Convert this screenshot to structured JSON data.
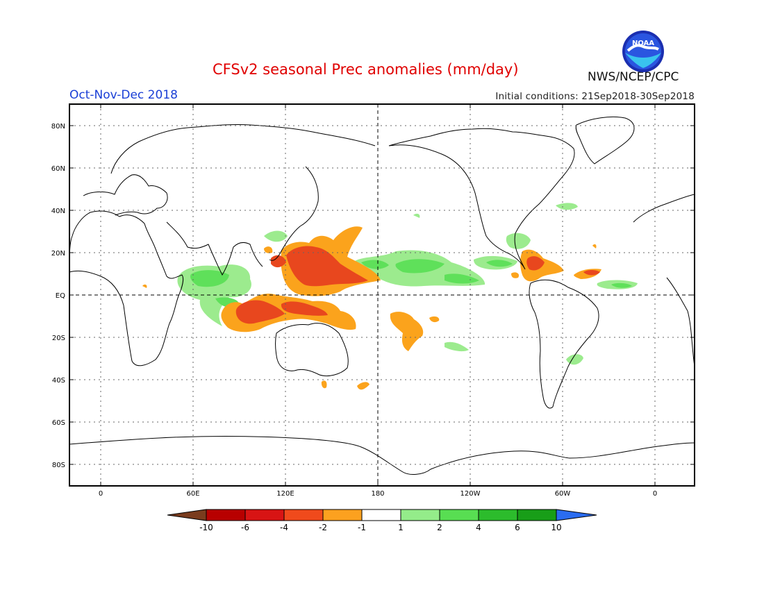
{
  "header": {
    "title": "CFSv2 seasonal Prec anomalies (mm/day)",
    "season": "Oct-Nov-Dec 2018",
    "initial_conditions": "Initial conditions: 21Sep2018-30Sep2018",
    "agency": "NWS/NCEP/CPC",
    "logo_text": "NOAA"
  },
  "map": {
    "lat_labels": [
      "80N",
      "60N",
      "40N",
      "20N",
      "EQ",
      "20S",
      "40S",
      "60S",
      "80S"
    ],
    "lon_labels": [
      "0",
      "60E",
      "120E",
      "180",
      "120W",
      "60W",
      "0"
    ]
  },
  "legend": {
    "tick_labels": [
      "-10",
      "-6",
      "-4",
      "-2",
      "-1",
      "1",
      "2",
      "4",
      "6",
      "10"
    ],
    "colors": [
      "#7a3c1e",
      "#b80000",
      "#d81414",
      "#f04a1c",
      "#fca11f",
      "#ffffff",
      "#94ec8a",
      "#58de52",
      "#2cbc2c",
      "#189e18",
      "#2a6cf0"
    ]
  },
  "colors": {
    "dry_strong": "#e8471e",
    "dry_moderate": "#fba31c",
    "wet_light": "#9ceb8e",
    "wet_moderate": "#5fe05a",
    "title_red": "#e00000",
    "season_blue": "#1a3fd6"
  }
}
